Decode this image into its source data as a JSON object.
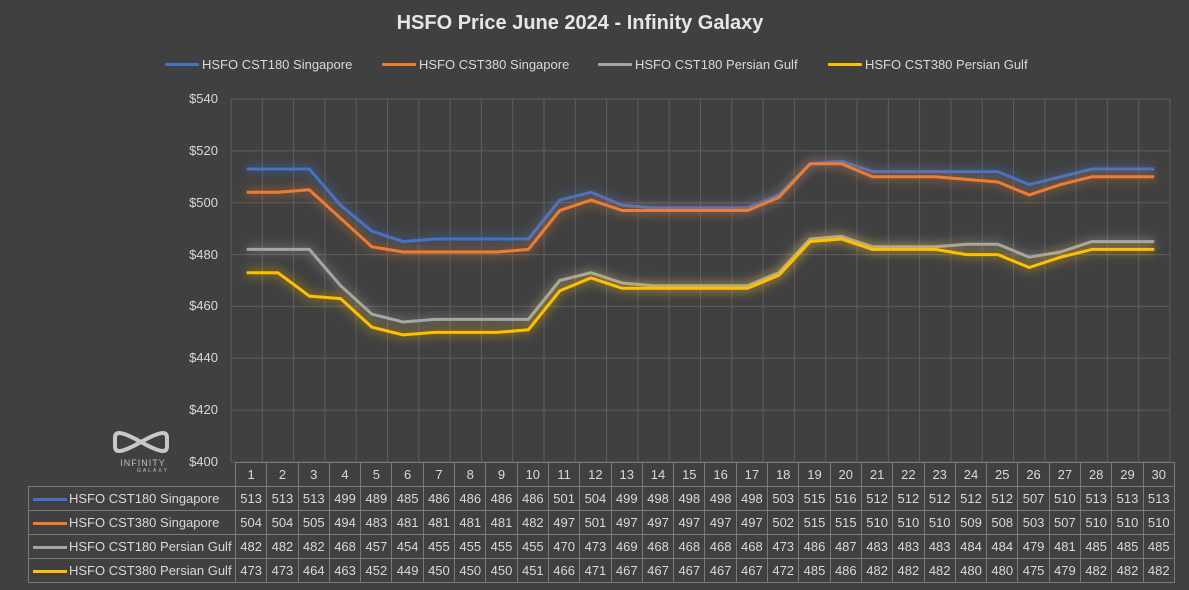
{
  "chart_data": {
    "type": "line",
    "title": "HSFO Price June 2024 - Infinity Galaxy",
    "xlabel": "",
    "ylabel": "",
    "ylim": [
      400,
      540
    ],
    "yticks": [
      "$400",
      "$420",
      "$440",
      "$460",
      "$480",
      "$500",
      "$520",
      "$540"
    ],
    "ytick_values": [
      400,
      420,
      440,
      460,
      480,
      500,
      520,
      540
    ],
    "grid": true,
    "legend_position": "top",
    "categories": [
      "1",
      "2",
      "3",
      "4",
      "5",
      "6",
      "7",
      "8",
      "9",
      "10",
      "11",
      "12",
      "13",
      "14",
      "15",
      "16",
      "17",
      "18",
      "19",
      "20",
      "21",
      "22",
      "23",
      "24",
      "25",
      "26",
      "27",
      "28",
      "29",
      "30"
    ],
    "series": [
      {
        "name": "HSFO CST180 Singapore",
        "color": "#4472c4",
        "values": [
          513,
          513,
          513,
          499,
          489,
          485,
          486,
          486,
          486,
          486,
          501,
          504,
          499,
          498,
          498,
          498,
          498,
          503,
          515,
          516,
          512,
          512,
          512,
          512,
          512,
          507,
          510,
          513,
          513,
          513
        ]
      },
      {
        "name": "HSFO CST380 Singapore",
        "color": "#ed7d31",
        "values": [
          504,
          504,
          505,
          494,
          483,
          481,
          481,
          481,
          481,
          482,
          497,
          501,
          497,
          497,
          497,
          497,
          497,
          502,
          515,
          515,
          510,
          510,
          510,
          509,
          508,
          503,
          507,
          510,
          510,
          510
        ]
      },
      {
        "name": "HSFO CST180 Persian Gulf",
        "color": "#a5a5a5",
        "values": [
          482,
          482,
          482,
          468,
          457,
          454,
          455,
          455,
          455,
          455,
          470,
          473,
          469,
          468,
          468,
          468,
          468,
          473,
          486,
          487,
          483,
          483,
          483,
          484,
          484,
          479,
          481,
          485,
          485,
          485
        ]
      },
      {
        "name": "HSFO CST380 Persian Gulf",
        "color": "#ffc000",
        "values": [
          473,
          473,
          464,
          463,
          452,
          449,
          450,
          450,
          450,
          451,
          466,
          471,
          467,
          467,
          467,
          467,
          467,
          472,
          485,
          486,
          482,
          482,
          482,
          480,
          480,
          475,
          479,
          482,
          482,
          482
        ]
      }
    ],
    "data_table": true
  },
  "logo": {
    "name": "INFINITY",
    "sub": "GALAXY"
  }
}
